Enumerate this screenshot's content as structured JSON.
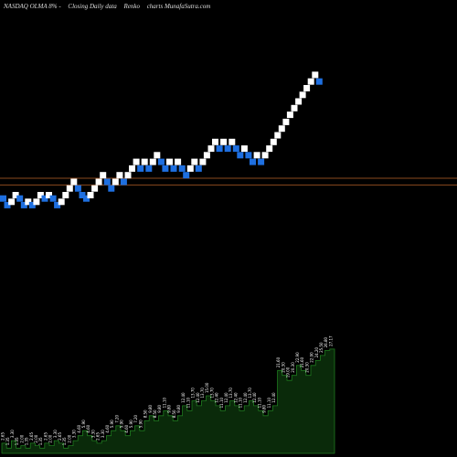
{
  "header": {
    "title": "NASDAQ OLMA 8% -",
    "subtitle": "Closing Daily data",
    "chart_kind": "Renko",
    "source": "charts MunafaSutra.com"
  },
  "colors": {
    "background": "#000000",
    "up_brick": "#ffffff",
    "down_brick": "#1e6fe0",
    "level_line": "#8a4a1e",
    "volume_fill": "#0a2a0a",
    "volume_line": "#1f7a1f",
    "label": "#ffffff"
  },
  "chart_data": [
    {
      "type": "renko",
      "title": "NASDAQ OLMA 8% - Closing Daily data Renko charts MunafaSutra.com",
      "grid": false,
      "level_lines": [
        6.6,
        5.3
      ],
      "ylim": [
        0,
        34
      ],
      "bricks": [
        {
          "col": 0,
          "value": 2.65,
          "dir": "down"
        },
        {
          "col": 1,
          "value": 1.35,
          "dir": "down"
        },
        {
          "col": 2,
          "value": 2.0,
          "dir": "up"
        },
        {
          "col": 3,
          "value": 3.3,
          "dir": "up"
        },
        {
          "col": 4,
          "value": 2.65,
          "dir": "down"
        },
        {
          "col": 5,
          "value": 1.35,
          "dir": "down"
        },
        {
          "col": 6,
          "value": 2.0,
          "dir": "up"
        },
        {
          "col": 7,
          "value": 1.35,
          "dir": "down"
        },
        {
          "col": 8,
          "value": 2.0,
          "dir": "up"
        },
        {
          "col": 9,
          "value": 3.3,
          "dir": "up"
        },
        {
          "col": 10,
          "value": 2.65,
          "dir": "down"
        },
        {
          "col": 11,
          "value": 3.3,
          "dir": "up"
        },
        {
          "col": 12,
          "value": 2.65,
          "dir": "down"
        },
        {
          "col": 13,
          "value": 1.35,
          "dir": "down"
        },
        {
          "col": 14,
          "value": 2.0,
          "dir": "up"
        },
        {
          "col": 15,
          "value": 3.3,
          "dir": "up"
        },
        {
          "col": 16,
          "value": 4.6,
          "dir": "up"
        },
        {
          "col": 17,
          "value": 5.9,
          "dir": "up"
        },
        {
          "col": 18,
          "value": 4.6,
          "dir": "down"
        },
        {
          "col": 19,
          "value": 3.3,
          "dir": "down"
        },
        {
          "col": 20,
          "value": 2.65,
          "dir": "down"
        },
        {
          "col": 21,
          "value": 3.3,
          "dir": "up"
        },
        {
          "col": 22,
          "value": 4.6,
          "dir": "up"
        },
        {
          "col": 23,
          "value": 5.9,
          "dir": "up"
        },
        {
          "col": 24,
          "value": 7.2,
          "dir": "up"
        },
        {
          "col": 25,
          "value": 5.9,
          "dir": "down"
        },
        {
          "col": 26,
          "value": 4.6,
          "dir": "down"
        },
        {
          "col": 27,
          "value": 5.9,
          "dir": "up"
        },
        {
          "col": 28,
          "value": 7.2,
          "dir": "up"
        },
        {
          "col": 29,
          "value": 5.9,
          "dir": "down"
        },
        {
          "col": 30,
          "value": 7.2,
          "dir": "up"
        },
        {
          "col": 31,
          "value": 8.5,
          "dir": "up"
        },
        {
          "col": 32,
          "value": 9.8,
          "dir": "up"
        },
        {
          "col": 33,
          "value": 8.5,
          "dir": "down"
        },
        {
          "col": 34,
          "value": 9.8,
          "dir": "up"
        },
        {
          "col": 35,
          "value": 8.5,
          "dir": "down"
        },
        {
          "col": 36,
          "value": 9.8,
          "dir": "up"
        },
        {
          "col": 37,
          "value": 11.1,
          "dir": "up"
        },
        {
          "col": 38,
          "value": 9.8,
          "dir": "down"
        },
        {
          "col": 39,
          "value": 8.5,
          "dir": "down"
        },
        {
          "col": 40,
          "value": 9.8,
          "dir": "up"
        },
        {
          "col": 41,
          "value": 8.5,
          "dir": "down"
        },
        {
          "col": 42,
          "value": 9.8,
          "dir": "up"
        },
        {
          "col": 43,
          "value": 8.5,
          "dir": "down"
        },
        {
          "col": 44,
          "value": 7.2,
          "dir": "down"
        },
        {
          "col": 45,
          "value": 8.5,
          "dir": "up"
        },
        {
          "col": 46,
          "value": 9.8,
          "dir": "up"
        },
        {
          "col": 47,
          "value": 8.5,
          "dir": "down"
        },
        {
          "col": 48,
          "value": 9.8,
          "dir": "up"
        },
        {
          "col": 49,
          "value": 11.1,
          "dir": "up"
        },
        {
          "col": 50,
          "value": 12.4,
          "dir": "up"
        },
        {
          "col": 51,
          "value": 13.7,
          "dir": "up"
        },
        {
          "col": 52,
          "value": 12.4,
          "dir": "down"
        },
        {
          "col": 53,
          "value": 13.7,
          "dir": "up"
        },
        {
          "col": 54,
          "value": 12.4,
          "dir": "down"
        },
        {
          "col": 55,
          "value": 13.7,
          "dir": "up"
        },
        {
          "col": 56,
          "value": 12.4,
          "dir": "down"
        },
        {
          "col": 57,
          "value": 11.1,
          "dir": "down"
        },
        {
          "col": 58,
          "value": 12.4,
          "dir": "up"
        },
        {
          "col": 59,
          "value": 11.1,
          "dir": "down"
        },
        {
          "col": 60,
          "value": 9.8,
          "dir": "down"
        },
        {
          "col": 61,
          "value": 11.1,
          "dir": "up"
        },
        {
          "col": 62,
          "value": 9.8,
          "dir": "down"
        },
        {
          "col": 63,
          "value": 11.1,
          "dir": "up"
        },
        {
          "col": 64,
          "value": 12.4,
          "dir": "up"
        },
        {
          "col": 65,
          "value": 13.7,
          "dir": "up"
        },
        {
          "col": 66,
          "value": 15.0,
          "dir": "up"
        },
        {
          "col": 67,
          "value": 16.3,
          "dir": "up"
        },
        {
          "col": 68,
          "value": 17.6,
          "dir": "up"
        },
        {
          "col": 69,
          "value": 19.0,
          "dir": "up"
        },
        {
          "col": 70,
          "value": 20.3,
          "dir": "up"
        },
        {
          "col": 71,
          "value": 21.6,
          "dir": "up"
        },
        {
          "col": 72,
          "value": 22.9,
          "dir": "up"
        },
        {
          "col": 73,
          "value": 24.2,
          "dir": "up"
        },
        {
          "col": 74,
          "value": 25.5,
          "dir": "up"
        },
        {
          "col": 75,
          "value": 26.8,
          "dir": "up"
        },
        {
          "col": 76,
          "value": 25.5,
          "dir": "down"
        }
      ]
    },
    {
      "type": "area",
      "title": "",
      "labels": [
        "2.65",
        "1.35",
        "3.30",
        "1.35",
        "2.00",
        "1.35",
        "2.65",
        "2.00",
        "1.35",
        "2.65",
        "2.00",
        "3.30",
        "2.65",
        "1.35",
        "2.00",
        "3.30",
        "4.60",
        "5.90",
        "4.60",
        "3.30",
        "2.65",
        "3.30",
        "4.60",
        "5.90",
        "7.20",
        "5.90",
        "4.60",
        "5.90",
        "7.20",
        "5.90",
        "8.50",
        "9.80",
        "8.50",
        "9.80",
        "11.10",
        "9.80",
        "8.50",
        "9.80",
        "12.40",
        "11.10",
        "13.70",
        "12.40",
        "13.70",
        "15.00",
        "13.70",
        "12.40",
        "11.10",
        "12.40",
        "13.70",
        "12.40",
        "11.10",
        "12.40",
        "13.70",
        "12.40",
        "11.10",
        "9.80",
        "11.10",
        "12.40",
        "21.60",
        "20.30",
        "19.00",
        "20.30",
        "22.90",
        "21.60",
        "20.30",
        "22.90",
        "24.20",
        "25.50",
        "26.80",
        "27.17"
      ],
      "values": [
        2.65,
        1.35,
        3.3,
        1.35,
        2.0,
        1.35,
        2.65,
        2.0,
        1.35,
        2.65,
        2.0,
        3.3,
        2.65,
        1.35,
        2.0,
        3.3,
        4.6,
        5.9,
        4.6,
        3.3,
        2.65,
        3.3,
        4.6,
        5.9,
        7.2,
        5.9,
        4.6,
        5.9,
        7.2,
        5.9,
        8.5,
        9.8,
        8.5,
        9.8,
        11.1,
        9.8,
        8.5,
        9.8,
        12.4,
        11.1,
        13.7,
        12.4,
        13.7,
        15.0,
        13.7,
        12.4,
        11.1,
        12.4,
        13.7,
        12.4,
        11.1,
        12.4,
        13.7,
        12.4,
        11.1,
        9.8,
        11.1,
        12.4,
        21.6,
        20.3,
        19.0,
        20.3,
        22.9,
        21.6,
        20.3,
        22.9,
        24.2,
        25.5,
        26.8,
        27.17
      ],
      "ylim": [
        0,
        30
      ]
    }
  ]
}
